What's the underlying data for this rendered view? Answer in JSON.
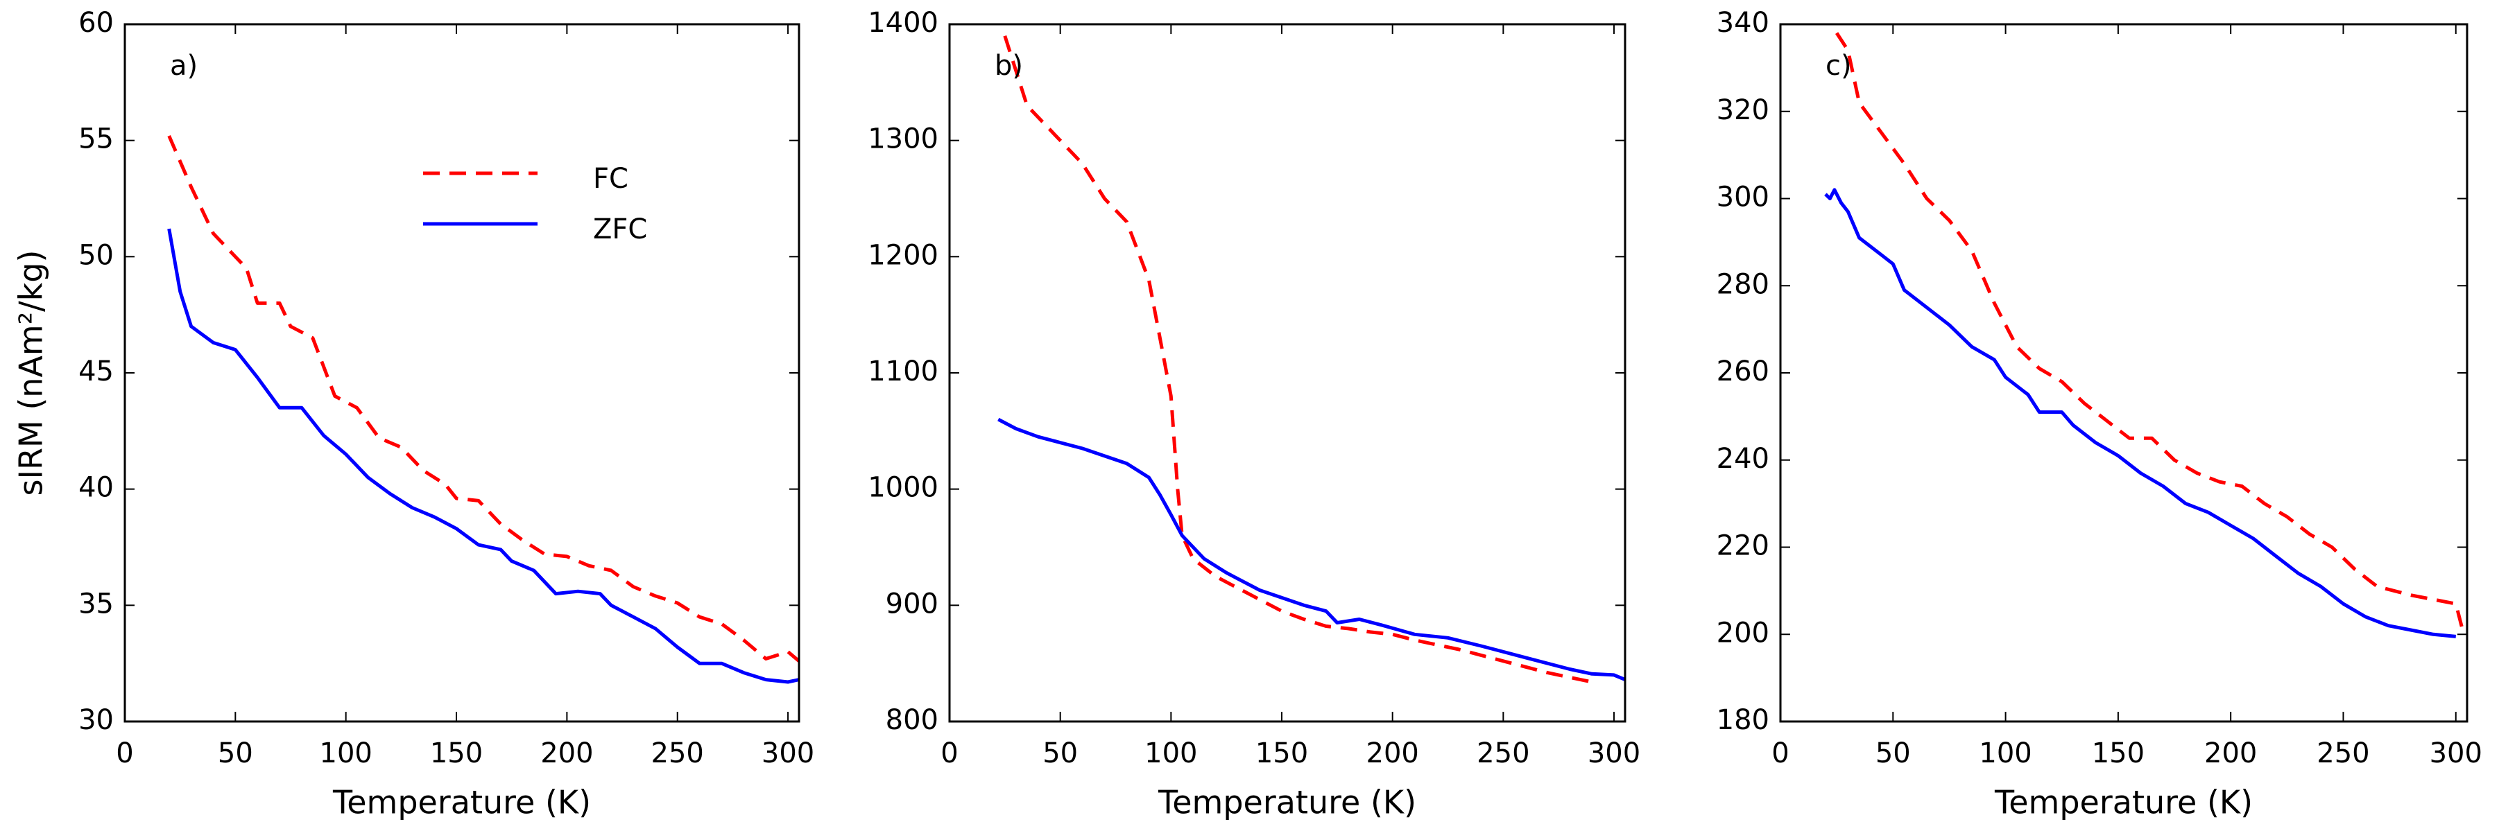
{
  "chart_data": [
    {
      "type": "line",
      "annotation": "a)",
      "xlabel": "Temperature (K)",
      "ylabel": "sIRM (nAm²/kg)",
      "xlim": [
        0,
        305
      ],
      "xticks": [
        0,
        50,
        100,
        150,
        200,
        250,
        300
      ],
      "ylim": [
        30,
        60
      ],
      "yticks": [
        30,
        35,
        40,
        45,
        50,
        55,
        60
      ],
      "legend": "upper center",
      "series": [
        {
          "name": "FC",
          "color": "#ff0000",
          "dashed": true,
          "x": [
            20,
            30,
            40,
            50,
            55,
            60,
            70,
            75,
            85,
            95,
            105,
            115,
            125,
            135,
            145,
            150,
            160,
            170,
            180,
            190,
            200,
            210,
            220,
            230,
            240,
            250,
            260,
            270,
            280,
            290,
            300,
            305
          ],
          "values": [
            55.2,
            53,
            51,
            50,
            49.5,
            48,
            48,
            47,
            46.5,
            44,
            43.5,
            42.2,
            41.8,
            40.8,
            40.2,
            39.6,
            39.5,
            38.5,
            37.8,
            37.2,
            37.1,
            36.7,
            36.5,
            35.8,
            35.4,
            35.1,
            34.5,
            34.2,
            33.5,
            32.7,
            33,
            32.6
          ]
        },
        {
          "name": "ZFC",
          "color": "#0000ff",
          "dashed": false,
          "x": [
            20,
            25,
            30,
            40,
            50,
            60,
            70,
            80,
            90,
            100,
            110,
            120,
            130,
            140,
            150,
            160,
            170,
            175,
            185,
            195,
            205,
            215,
            220,
            230,
            240,
            250,
            260,
            270,
            280,
            290,
            300,
            305
          ],
          "values": [
            51.2,
            48.5,
            47,
            46.3,
            46,
            44.8,
            43.5,
            43.5,
            42.3,
            41.5,
            40.5,
            39.8,
            39.2,
            38.8,
            38.3,
            37.6,
            37.4,
            36.9,
            36.5,
            35.5,
            35.6,
            35.5,
            35,
            34.5,
            34,
            33.2,
            32.5,
            32.5,
            32.1,
            31.8,
            31.7,
            31.8
          ]
        }
      ]
    },
    {
      "type": "line",
      "annotation": "b)",
      "xlabel": "Temperature (K)",
      "xlim": [
        0,
        305
      ],
      "xticks": [
        0,
        50,
        100,
        150,
        200,
        250,
        300
      ],
      "ylim": [
        800,
        1400
      ],
      "yticks": [
        800,
        900,
        1000,
        1100,
        1200,
        1300,
        1400
      ],
      "series": [
        {
          "color": "#ff0000",
          "dashed": true,
          "x": [
            25,
            35,
            50,
            60,
            70,
            80,
            90,
            95,
            100,
            103,
            105,
            110,
            120,
            130,
            140,
            150,
            160,
            170,
            180,
            190,
            200,
            210,
            220,
            230,
            240,
            250,
            260,
            270,
            280,
            290
          ],
          "values": [
            1390,
            1330,
            1300,
            1280,
            1250,
            1230,
            1180,
            1130,
            1080,
            1000,
            960,
            940,
            925,
            915,
            905,
            895,
            888,
            882,
            880,
            877,
            875,
            870,
            866,
            862,
            857,
            852,
            847,
            842,
            838,
            834
          ]
        },
        {
          "color": "#0000ff",
          "dashed": false,
          "x": [
            22,
            30,
            40,
            60,
            80,
            90,
            95,
            100,
            105,
            115,
            125,
            140,
            160,
            170,
            175,
            185,
            195,
            210,
            225,
            240,
            260,
            280,
            290,
            300,
            305
          ],
          "values": [
            1060,
            1052,
            1045,
            1035,
            1022,
            1010,
            995,
            978,
            960,
            940,
            928,
            913,
            900,
            895,
            885,
            888,
            883,
            875,
            872,
            865,
            855,
            845,
            841,
            840,
            836
          ]
        }
      ]
    },
    {
      "type": "line",
      "annotation": "c)",
      "xlabel": "Temperature (K)",
      "xlim": [
        0,
        305
      ],
      "xticks": [
        0,
        50,
        100,
        150,
        200,
        250,
        300
      ],
      "ylim": [
        180,
        340
      ],
      "yticks": [
        180,
        200,
        220,
        240,
        260,
        280,
        300,
        320,
        340
      ],
      "series": [
        {
          "color": "#ff0000",
          "dashed": true,
          "x": [
            25,
            30,
            35,
            45,
            55,
            65,
            75,
            85,
            95,
            105,
            115,
            125,
            135,
            145,
            155,
            165,
            175,
            185,
            195,
            205,
            215,
            225,
            235,
            245,
            255,
            265,
            280,
            300,
            303
          ],
          "values": [
            338,
            334,
            322,
            315,
            308,
            300,
            295,
            288,
            276,
            266,
            261,
            258,
            253,
            249,
            245,
            245,
            240,
            237,
            235,
            234,
            230,
            227,
            223,
            220,
            215,
            211,
            209,
            207,
            201
          ]
        },
        {
          "color": "#0000ff",
          "dashed": false,
          "x": [
            20,
            22,
            24,
            27,
            30,
            35,
            45,
            50,
            55,
            65,
            75,
            85,
            95,
            100,
            110,
            115,
            125,
            130,
            140,
            150,
            160,
            170,
            180,
            190,
            200,
            210,
            220,
            230,
            240,
            250,
            260,
            270,
            280,
            290,
            300
          ],
          "values": [
            301,
            300,
            302,
            299,
            297,
            291,
            287,
            285,
            279,
            275,
            271,
            266,
            263,
            259,
            255,
            251,
            251,
            248,
            244,
            241,
            237,
            234,
            230,
            228,
            225,
            222,
            218,
            214,
            211,
            207,
            204,
            202,
            201,
            200,
            199.5
          ]
        }
      ]
    }
  ]
}
